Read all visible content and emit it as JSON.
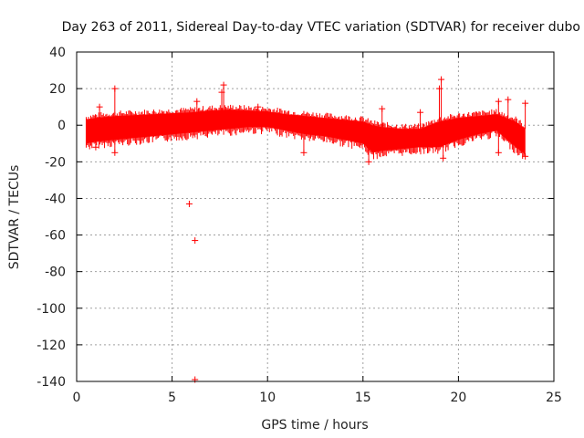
{
  "chart_data": {
    "type": "scatter",
    "title": "Day 263 of 2011, Sidereal Day-to-day VTEC variation (SDTVAR) for receiver dubo",
    "xlabel": "GPS time / hours",
    "ylabel": "SDTVAR / TECUs",
    "xlim": [
      0,
      25
    ],
    "ylim": [
      -140,
      40
    ],
    "x_ticks": [
      0,
      5,
      10,
      15,
      20,
      25
    ],
    "y_ticks": [
      -140,
      -120,
      -100,
      -80,
      -60,
      -40,
      -20,
      0,
      20,
      40
    ],
    "grid": true,
    "marker": "+",
    "color": "#ff0000",
    "data_range_hours": [
      0.5,
      23.5
    ],
    "band": {
      "name": "dense SDTVAR band",
      "x": [
        0.5,
        1,
        2,
        3,
        4,
        5,
        6,
        7,
        8,
        9,
        10,
        11,
        12,
        13,
        14,
        15,
        15.5,
        16,
        17,
        18,
        19,
        20,
        21,
        22,
        23,
        23.5
      ],
      "upper": [
        3,
        4,
        5,
        5.5,
        6,
        6.5,
        7,
        8,
        8.5,
        8,
        7.5,
        6,
        5,
        4,
        3,
        2,
        0,
        -1,
        -2,
        -2,
        2,
        4,
        5,
        6,
        2,
        -2
      ],
      "lower": [
        -10,
        -9,
        -8,
        -7,
        -6,
        -5,
        -4,
        -3,
        -2,
        -1,
        -1,
        -3,
        -5,
        -6,
        -8,
        -10,
        -15,
        -14,
        -13,
        -12,
        -12,
        -8,
        -5,
        -3,
        -12,
        -16
      ]
    },
    "points": [
      {
        "x": 5.9,
        "y": -43
      },
      {
        "x": 6.2,
        "y": -63
      },
      {
        "x": 6.2,
        "y": -139
      },
      {
        "x": 2.0,
        "y": 20
      },
      {
        "x": 2.0,
        "y": -15
      },
      {
        "x": 1.2,
        "y": 10
      },
      {
        "x": 6.3,
        "y": 13
      },
      {
        "x": 7.7,
        "y": 22
      },
      {
        "x": 7.6,
        "y": 18
      },
      {
        "x": 9.5,
        "y": 10
      },
      {
        "x": 11.9,
        "y": -15
      },
      {
        "x": 15.3,
        "y": -20
      },
      {
        "x": 16.0,
        "y": 9
      },
      {
        "x": 18.0,
        "y": 7
      },
      {
        "x": 19.1,
        "y": 25
      },
      {
        "x": 19.0,
        "y": 20
      },
      {
        "x": 19.2,
        "y": -18
      },
      {
        "x": 22.1,
        "y": 13
      },
      {
        "x": 22.6,
        "y": 14
      },
      {
        "x": 22.1,
        "y": -15
      },
      {
        "x": 23.5,
        "y": -17
      },
      {
        "x": 23.5,
        "y": 12
      },
      {
        "x": 1.0,
        "y": -12
      }
    ]
  }
}
